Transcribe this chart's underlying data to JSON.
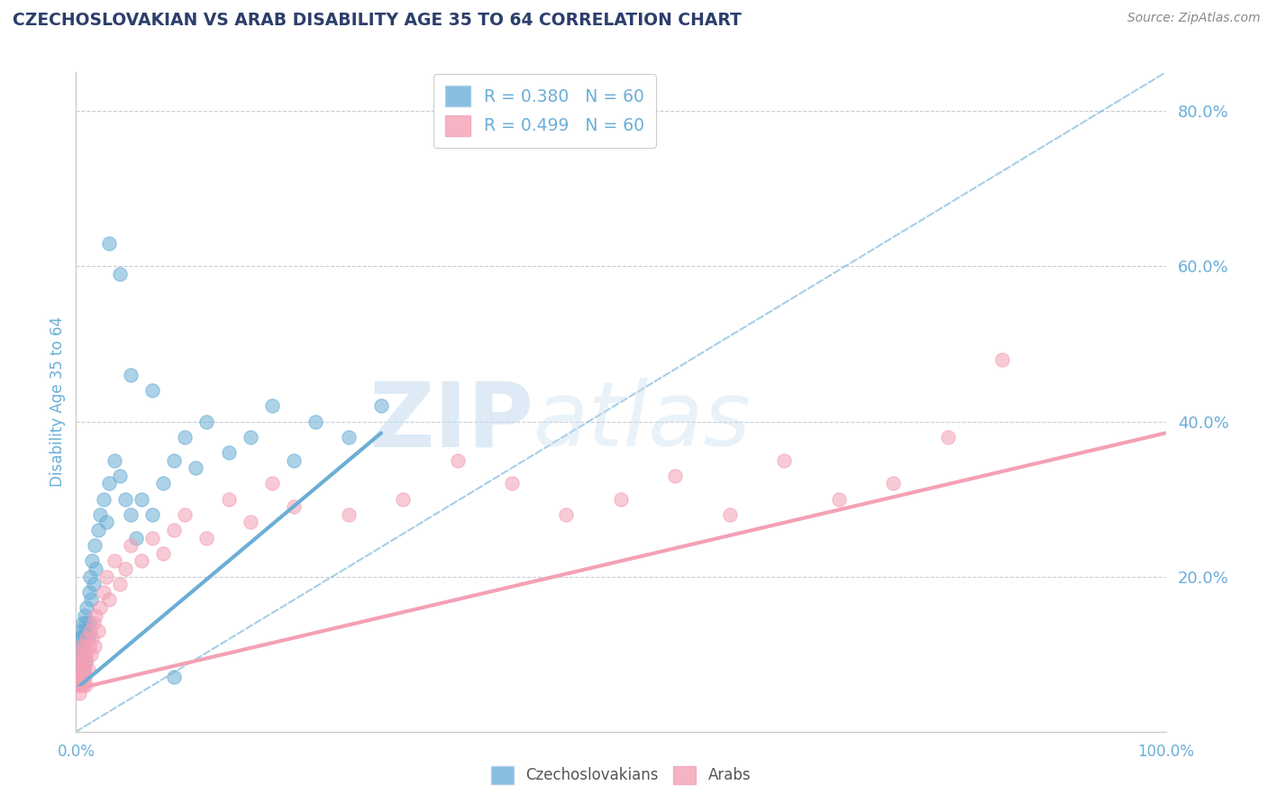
{
  "title": "CZECHOSLOVAKIAN VS ARAB DISABILITY AGE 35 TO 64 CORRELATION CHART",
  "source": "Source: ZipAtlas.com",
  "ylabel": "Disability Age 35 to 64",
  "xlim": [
    0.0,
    1.0
  ],
  "ylim": [
    0.0,
    0.85
  ],
  "x_tick_labels": [
    "0.0%",
    "100.0%"
  ],
  "y_tick_labels": [
    "20.0%",
    "40.0%",
    "60.0%",
    "80.0%"
  ],
  "y_tick_values": [
    0.2,
    0.4,
    0.6,
    0.8
  ],
  "legend_r1": "R = 0.380",
  "legend_n1": "N = 60",
  "legend_r2": "R = 0.499",
  "legend_n2": "N = 60",
  "blue_color": "#6baed6",
  "pink_color": "#f4a0b5",
  "title_color": "#2c3e6b",
  "axis_label_color": "#6baed6",
  "background_color": "#ffffff",
  "grid_color": "#b0b8c8",
  "czecho_x": [
    0.002,
    0.002,
    0.003,
    0.003,
    0.003,
    0.004,
    0.004,
    0.004,
    0.005,
    0.005,
    0.005,
    0.006,
    0.006,
    0.007,
    0.007,
    0.007,
    0.008,
    0.008,
    0.009,
    0.009,
    0.01,
    0.01,
    0.011,
    0.012,
    0.012,
    0.013,
    0.014,
    0.015,
    0.016,
    0.017,
    0.018,
    0.02,
    0.022,
    0.025,
    0.028,
    0.03,
    0.035,
    0.04,
    0.045,
    0.05,
    0.055,
    0.06,
    0.07,
    0.08,
    0.09,
    0.1,
    0.11,
    0.12,
    0.14,
    0.16,
    0.18,
    0.2,
    0.22,
    0.25,
    0.28,
    0.03,
    0.04,
    0.05,
    0.07,
    0.09
  ],
  "czecho_y": [
    0.08,
    0.1,
    0.07,
    0.12,
    0.09,
    0.11,
    0.08,
    0.13,
    0.1,
    0.09,
    0.12,
    0.11,
    0.14,
    0.1,
    0.13,
    0.08,
    0.12,
    0.15,
    0.09,
    0.14,
    0.13,
    0.16,
    0.12,
    0.18,
    0.14,
    0.2,
    0.17,
    0.22,
    0.19,
    0.24,
    0.21,
    0.26,
    0.28,
    0.3,
    0.27,
    0.32,
    0.35,
    0.33,
    0.3,
    0.28,
    0.25,
    0.3,
    0.28,
    0.32,
    0.35,
    0.38,
    0.34,
    0.4,
    0.36,
    0.38,
    0.42,
    0.35,
    0.4,
    0.38,
    0.42,
    0.63,
    0.59,
    0.46,
    0.44,
    0.07
  ],
  "arab_x": [
    0.002,
    0.002,
    0.003,
    0.003,
    0.004,
    0.004,
    0.004,
    0.005,
    0.005,
    0.005,
    0.006,
    0.006,
    0.007,
    0.007,
    0.008,
    0.008,
    0.009,
    0.009,
    0.01,
    0.01,
    0.011,
    0.012,
    0.013,
    0.014,
    0.015,
    0.016,
    0.017,
    0.018,
    0.02,
    0.022,
    0.025,
    0.028,
    0.03,
    0.035,
    0.04,
    0.045,
    0.05,
    0.06,
    0.07,
    0.08,
    0.09,
    0.1,
    0.12,
    0.14,
    0.16,
    0.18,
    0.2,
    0.25,
    0.3,
    0.35,
    0.4,
    0.45,
    0.5,
    0.55,
    0.6,
    0.65,
    0.7,
    0.75,
    0.8,
    0.85
  ],
  "arab_y": [
    0.06,
    0.08,
    0.05,
    0.09,
    0.07,
    0.1,
    0.06,
    0.08,
    0.11,
    0.07,
    0.09,
    0.06,
    0.1,
    0.08,
    0.07,
    0.11,
    0.09,
    0.06,
    0.1,
    0.12,
    0.08,
    0.11,
    0.13,
    0.1,
    0.12,
    0.14,
    0.11,
    0.15,
    0.13,
    0.16,
    0.18,
    0.2,
    0.17,
    0.22,
    0.19,
    0.21,
    0.24,
    0.22,
    0.25,
    0.23,
    0.26,
    0.28,
    0.25,
    0.3,
    0.27,
    0.32,
    0.29,
    0.28,
    0.3,
    0.35,
    0.32,
    0.28,
    0.3,
    0.33,
    0.28,
    0.35,
    0.3,
    0.32,
    0.38,
    0.48
  ],
  "blue_line_x": [
    0.0,
    0.28
  ],
  "blue_line_y": [
    0.055,
    0.385
  ],
  "pink_line_x": [
    0.0,
    1.0
  ],
  "pink_line_y": [
    0.055,
    0.385
  ],
  "diag_line_x": [
    0.0,
    1.0
  ],
  "diag_line_y": [
    0.0,
    0.85
  ]
}
